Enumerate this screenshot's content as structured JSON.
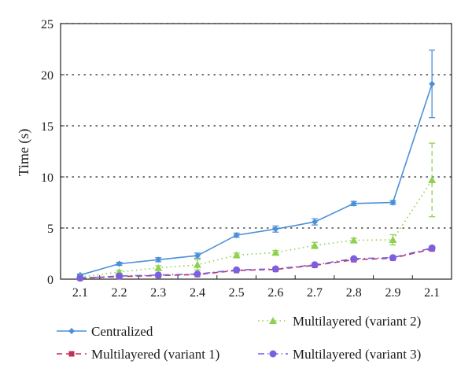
{
  "chart_data": {
    "type": "line",
    "title": "",
    "xlabel": "",
    "ylabel": "Time (s)",
    "categories": [
      "2.1",
      "2.2",
      "2.3",
      "2.4",
      "2.5",
      "2.6",
      "2.7",
      "2.8",
      "2.9",
      "2.1"
    ],
    "ylim": [
      0,
      25
    ],
    "yticks": [
      "0",
      "5",
      "10",
      "15",
      "20",
      "25"
    ],
    "grid": "horizontal-dotted",
    "legend_position": "bottom",
    "series": [
      {
        "name": "Centralized",
        "color": "#4a90d9",
        "marker": "diamond",
        "dash": "solid",
        "values": [
          0.4,
          1.5,
          1.9,
          2.3,
          4.3,
          4.9,
          5.6,
          7.4,
          7.5,
          19.1
        ],
        "errors": [
          0.1,
          0.15,
          0.2,
          0.25,
          0.2,
          0.3,
          0.3,
          0.2,
          0.2,
          3.3
        ]
      },
      {
        "name": "Multilayered (variant 1)",
        "color": "#c0305a",
        "marker": "square",
        "dash": "dashed",
        "values": [
          0.1,
          0.25,
          0.35,
          0.45,
          0.85,
          0.95,
          1.35,
          1.9,
          2.05,
          2.95
        ],
        "errors": [
          0.05,
          0.05,
          0.05,
          0.05,
          0.05,
          0.05,
          0.05,
          0.1,
          0.1,
          0.1
        ]
      },
      {
        "name": "Multilayered (variant 2)",
        "color": "#8fd14f",
        "marker": "triangle",
        "dash": "dotted",
        "values": [
          0.2,
          0.7,
          1.1,
          1.4,
          2.35,
          2.6,
          3.3,
          3.8,
          3.85,
          9.7
        ],
        "errors": [
          0.05,
          0.15,
          0.2,
          0.5,
          0.2,
          0.2,
          0.3,
          0.2,
          0.5,
          3.6
        ]
      },
      {
        "name": "Multilayered (variant 3)",
        "color": "#7a5fe0",
        "marker": "circle",
        "dash": "dashdot",
        "values": [
          0.1,
          0.3,
          0.4,
          0.5,
          0.9,
          1.0,
          1.4,
          2.0,
          2.1,
          3.05
        ],
        "errors": [
          0.05,
          0.05,
          0.05,
          0.05,
          0.05,
          0.05,
          0.05,
          0.1,
          0.1,
          0.1
        ]
      }
    ]
  }
}
